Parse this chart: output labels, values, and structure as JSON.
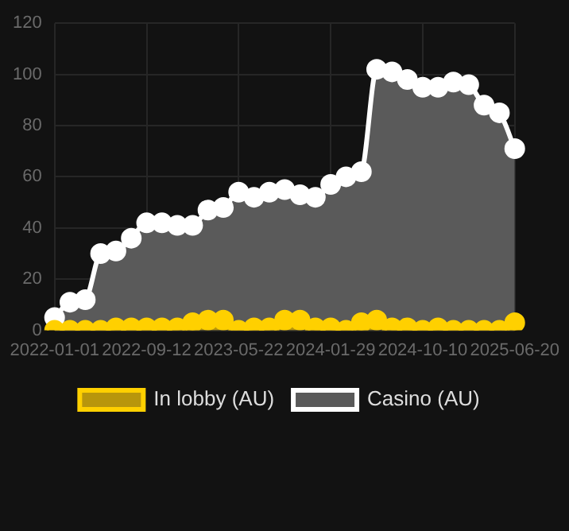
{
  "chart_data": {
    "type": "area",
    "categories": [
      "2022-01-01",
      null,
      null,
      null,
      null,
      null,
      "2022-09-12",
      null,
      null,
      null,
      null,
      null,
      "2023-05-22",
      null,
      null,
      null,
      null,
      null,
      "2024-01-29",
      null,
      null,
      null,
      null,
      null,
      "2024-10-10",
      null,
      null,
      null,
      null,
      null,
      "2025-06-20"
    ],
    "series": [
      {
        "name": "In lobby (AU)",
        "color": "#ffd000",
        "values": [
          0,
          0,
          0,
          0,
          1,
          1,
          1,
          1,
          1,
          3,
          4,
          4,
          0,
          1,
          1,
          4,
          4,
          1,
          1,
          0,
          3,
          4,
          1,
          1,
          0,
          1,
          0,
          0,
          0,
          0,
          3
        ]
      },
      {
        "name": "Casino (AU)",
        "color": "#ffffff",
        "values": [
          5,
          11,
          12,
          30,
          31,
          36,
          42,
          42,
          41,
          41,
          47,
          48,
          54,
          52,
          54,
          55,
          53,
          52,
          57,
          60,
          62,
          102,
          101,
          98,
          95,
          95,
          97,
          96,
          88,
          85,
          71
        ]
      }
    ],
    "ylim": [
      0,
      120
    ],
    "yticks": [
      0,
      20,
      40,
      60,
      80,
      100,
      120
    ],
    "grid": true,
    "legend": "bottom",
    "marker": "circle"
  }
}
